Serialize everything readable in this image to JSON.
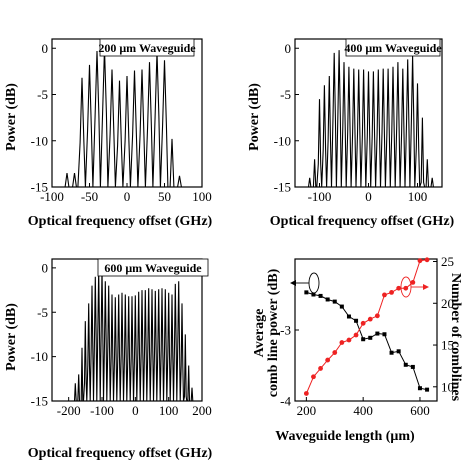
{
  "chart_data": [
    {
      "type": "line",
      "annotation": "200 μm Waveguide",
      "xlabel": "Optical frequency offset (GHz)",
      "ylabel": "Power (dB)",
      "xlim": [
        -100,
        100
      ],
      "ylim": [
        -15,
        1
      ],
      "xticks": [
        "-100",
        "-50",
        "0",
        "50",
        "100"
      ],
      "yticks": [
        "0",
        "-5",
        "-10",
        "-15"
      ],
      "comb_lines": {
        "x": [
          -80,
          -70,
          -60,
          -50,
          -40,
          -30,
          -20,
          -10,
          0,
          10,
          20,
          30,
          40,
          50,
          60,
          70
        ],
        "y": [
          -13.5,
          -13.5,
          -3.2,
          -1.8,
          -0.3,
          0,
          -2.3,
          -3.5,
          -3,
          -2.4,
          -2.3,
          -1.5,
          -0.4,
          -1.3,
          -9.8,
          -13.8
        ]
      }
    },
    {
      "type": "line",
      "annotation": "400 μm Waveguide",
      "xlabel": "Optical frequency offset (GHz)",
      "ylabel": "Power (dB)",
      "xlim": [
        -150,
        150
      ],
      "ylim": [
        -15,
        1
      ],
      "xticks": [
        "-100",
        "0",
        "100"
      ],
      "yticks": [
        "0",
        "-5",
        "-10",
        "-15"
      ],
      "comb_lines": {
        "x": [
          -120,
          -110,
          -100,
          -90,
          -80,
          -70,
          -60,
          -50,
          -40,
          -30,
          -20,
          -10,
          0,
          10,
          20,
          30,
          40,
          50,
          60,
          70,
          80,
          90,
          100,
          110,
          120,
          130
        ],
        "y": [
          -14,
          -12,
          -5.5,
          -4,
          -3,
          -0.5,
          -0.2,
          -1.5,
          -2,
          -2.2,
          -2.3,
          -2.3,
          -2.5,
          -2.5,
          -2.3,
          -2.2,
          -2.2,
          -2,
          -1.5,
          -2.2,
          -1.2,
          -0.8,
          -3.8,
          -7.5,
          -12,
          -14
        ]
      }
    },
    {
      "type": "line",
      "annotation": "600 μm Waveguide",
      "xlabel": "Optical frequency offset (GHz)",
      "ylabel": "Power (dB)",
      "xlim": [
        -250,
        200
      ],
      "ylim": [
        -15,
        1
      ],
      "xticks": [
        "-200",
        "-100",
        "0",
        "100",
        "200"
      ],
      "yticks": [
        "0",
        "-5",
        "-10",
        "-15"
      ],
      "comb_lines": {
        "x": [
          -180,
          -170,
          -160,
          -150,
          -140,
          -130,
          -120,
          -110,
          -100,
          -90,
          -80,
          -70,
          -60,
          -50,
          -40,
          -30,
          -20,
          -10,
          0,
          10,
          20,
          30,
          40,
          50,
          60,
          70,
          80,
          90,
          100,
          110,
          120,
          130,
          140,
          150,
          160,
          170
        ],
        "y": [
          -13,
          -12,
          -9,
          -6,
          -4,
          -2,
          -1,
          -0.3,
          -0.1,
          -1.5,
          -2,
          -3,
          -3.3,
          -3,
          -2.8,
          -3,
          -3.2,
          -3.2,
          -3.1,
          -2.7,
          -2.5,
          -2.5,
          -2.3,
          -2.4,
          -2.6,
          -2.4,
          -2.3,
          -2.4,
          -2.8,
          -3,
          -1.8,
          -1.5,
          -4,
          -7.5,
          -11,
          -13.5
        ]
      }
    },
    {
      "type": "line",
      "xlabel": "Waveguide length (μm)",
      "ylabel": "Average comb line power (dB)",
      "ylabel2": "Number of comblines",
      "xlim": [
        160,
        660
      ],
      "ylim": [
        -4,
        -2
      ],
      "ylim2": [
        8.3,
        25.3
      ],
      "xticks": [
        "200",
        "400",
        "600"
      ],
      "yticks": [
        "-3",
        "-4"
      ],
      "yticks2": [
        "10",
        "15",
        "20",
        "25"
      ],
      "series": [
        {
          "axis": "left",
          "color": "#000000",
          "marker": "square",
          "x": [
            200,
            225,
            250,
            275,
            300,
            325,
            350,
            375,
            400,
            425,
            450,
            475,
            500,
            525,
            550,
            575,
            600,
            625
          ],
          "y": [
            -2.47,
            -2.5,
            -2.52,
            -2.57,
            -2.6,
            -2.67,
            -2.81,
            -2.87,
            -3.13,
            -3.11,
            -3.05,
            -3.06,
            -3.32,
            -3.3,
            -3.49,
            -3.52,
            -3.82,
            -3.84
          ]
        },
        {
          "axis": "right",
          "color": "#ee2222",
          "marker": "circle",
          "x": [
            200,
            225,
            250,
            275,
            300,
            325,
            350,
            375,
            400,
            425,
            450,
            475,
            500,
            525,
            550,
            575,
            600,
            625
          ],
          "y": [
            9.2,
            11.2,
            12.2,
            13.2,
            14.1,
            15.3,
            15.6,
            16.2,
            17.6,
            18.1,
            18.5,
            21,
            21.3,
            21.8,
            21.8,
            22.5,
            25.1,
            25.2
          ]
        }
      ],
      "legend": "axis-indicator arrows (ellipses with arrows)"
    }
  ]
}
